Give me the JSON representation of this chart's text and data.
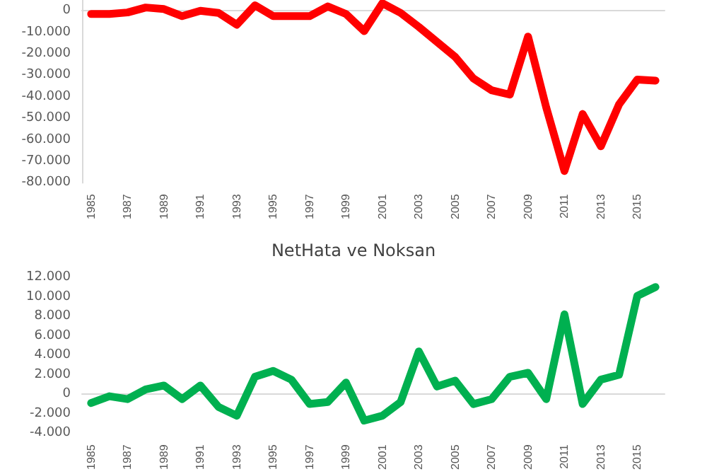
{
  "chart_data": [
    {
      "type": "line",
      "categories": [
        "1985",
        null,
        "1987",
        null,
        "1989",
        null,
        "1991",
        null,
        "1993",
        null,
        "1995",
        null,
        "1997",
        null,
        "1999",
        null,
        "2001",
        null,
        "2003",
        null,
        "2005",
        null,
        "2007",
        null,
        "2009",
        null,
        "2011",
        null,
        "2013",
        null,
        "2015",
        null
      ],
      "series": [
        {
          "color": "#ff0000",
          "values": [
            -1500,
            -1500,
            -800,
            1500,
            800,
            -2500,
            0,
            -1000,
            -6500,
            2500,
            -2500,
            -2500,
            -2500,
            2000,
            -1500,
            -9500,
            3500,
            -1000,
            -7500,
            -14500,
            -21500,
            -31500,
            -37000,
            -39000,
            -12000,
            -45000,
            -74500,
            -48000,
            -63000,
            -43500,
            -32000,
            -32500
          ]
        }
      ],
      "ylim": [
        -80000,
        5000
      ],
      "yticks": [
        {
          "value": -80000,
          "label": "-80.000"
        },
        {
          "value": -70000,
          "label": "-70.000"
        },
        {
          "value": -60000,
          "label": "-60.000"
        },
        {
          "value": -50000,
          "label": "-50.000"
        },
        {
          "value": -40000,
          "label": "-40.000"
        },
        {
          "value": -30000,
          "label": "-30.000"
        },
        {
          "value": -20000,
          "label": "-20.000"
        },
        {
          "value": -10000,
          "label": "-10.000"
        },
        0
      ],
      "marker": "none",
      "line_style": "solid"
    },
    {
      "type": "line",
      "title": "NetHata ve Noksan",
      "categories": [
        "1985",
        null,
        "1987",
        null,
        "1989",
        null,
        "1991",
        null,
        "1993",
        null,
        "1995",
        null,
        "1997",
        null,
        "1999",
        null,
        "2001",
        null,
        "2003",
        null,
        "2005",
        null,
        "2007",
        null,
        "2009",
        null,
        "2011",
        null,
        "2013",
        null,
        "2015",
        null
      ],
      "series": [
        {
          "color": "#00b050",
          "values": [
            -900,
            -200,
            -500,
            500,
            900,
            -500,
            900,
            -1300,
            -2200,
            1800,
            2400,
            1500,
            -1000,
            -800,
            1200,
            -2700,
            -2200,
            -800,
            4400,
            800,
            1400,
            -1000,
            -500,
            1800,
            2200,
            -500,
            8200,
            -1000,
            1500,
            2000,
            10100,
            11000
          ]
        }
      ],
      "ylim": [
        -4000,
        12000
      ],
      "yticks": [
        {
          "value": -4000,
          "label": "-4.000"
        },
        {
          "value": -2000,
          "label": "-2.000"
        },
        0,
        {
          "value": 2000,
          "label": "2.000"
        },
        {
          "value": 4000,
          "label": "4.000"
        },
        {
          "value": 6000,
          "label": "6.000"
        },
        {
          "value": 8000,
          "label": "8.000"
        },
        {
          "value": 10000,
          "label": "10.000"
        },
        {
          "value": 12000,
          "label": "12.000"
        }
      ],
      "marker": "none",
      "line_style": "solid"
    }
  ]
}
